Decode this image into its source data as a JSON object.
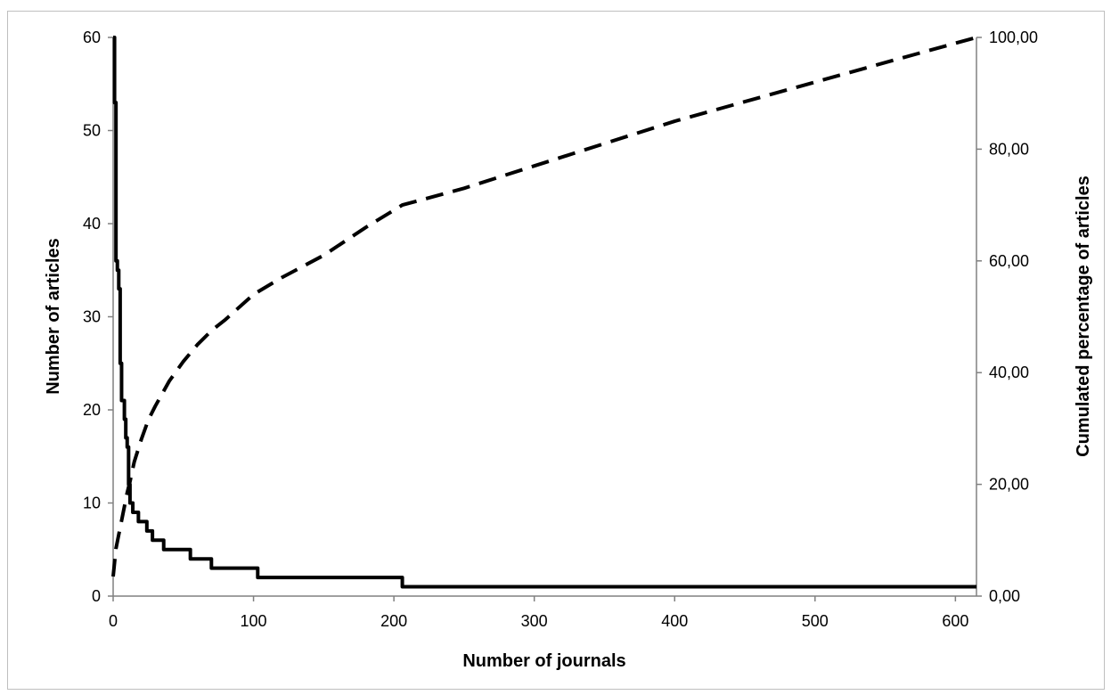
{
  "chart_data": {
    "type": "line",
    "title": "",
    "xlabel": "Number of journals",
    "ylabel": "Number of articles",
    "y2label": "Cumulated percentage of articles",
    "xlim": [
      0,
      615
    ],
    "ylim": [
      0,
      60
    ],
    "y2lim": [
      0,
      100
    ],
    "x_ticks": [
      0,
      100,
      200,
      300,
      400,
      500,
      600
    ],
    "x_tick_labels": [
      "0",
      "100",
      "200",
      "300",
      "400",
      "500",
      "600"
    ],
    "y_ticks": [
      0,
      10,
      20,
      30,
      40,
      50,
      60
    ],
    "y_tick_labels": [
      "0",
      "10",
      "20",
      "30",
      "40",
      "50",
      "60"
    ],
    "y2_ticks": [
      0,
      20,
      40,
      60,
      80,
      100
    ],
    "y2_tick_labels": [
      "0,00",
      "20,00",
      "40,00",
      "60,00",
      "80,00",
      "100,00"
    ],
    "grid": false,
    "legend": "none",
    "colors": {
      "series": "#000000",
      "axis": "#808080"
    },
    "series": [
      {
        "axis": "left",
        "style": "solid",
        "x": [
          0,
          1,
          2,
          3,
          4,
          5,
          6,
          7,
          8,
          9,
          10,
          11,
          12,
          13,
          14,
          16,
          18,
          20,
          24,
          28,
          36,
          55,
          70,
          103,
          206,
          615
        ],
        "values": [
          60,
          53,
          36,
          35,
          33,
          25,
          21,
          21,
          19,
          17,
          16,
          12,
          10,
          10,
          9,
          9,
          8,
          8,
          7,
          6,
          5,
          4,
          3,
          2,
          1,
          1
        ]
      },
      {
        "axis": "right",
        "style": "dashed",
        "x": [
          0,
          2,
          4,
          6,
          8,
          10,
          12,
          15,
          20,
          25,
          30,
          40,
          50,
          60,
          70,
          80,
          100,
          120,
          150,
          180,
          206,
          250,
          300,
          350,
          400,
          450,
          500,
          550,
          615
        ],
        "values": [
          3.5,
          8.5,
          11,
          13.5,
          16,
          18.5,
          20.5,
          24,
          28,
          31.5,
          34,
          38.5,
          42,
          45,
          47.5,
          49.5,
          54,
          57,
          61,
          66,
          70,
          73,
          77,
          81,
          85,
          88.5,
          92,
          95.5,
          100
        ]
      }
    ]
  }
}
